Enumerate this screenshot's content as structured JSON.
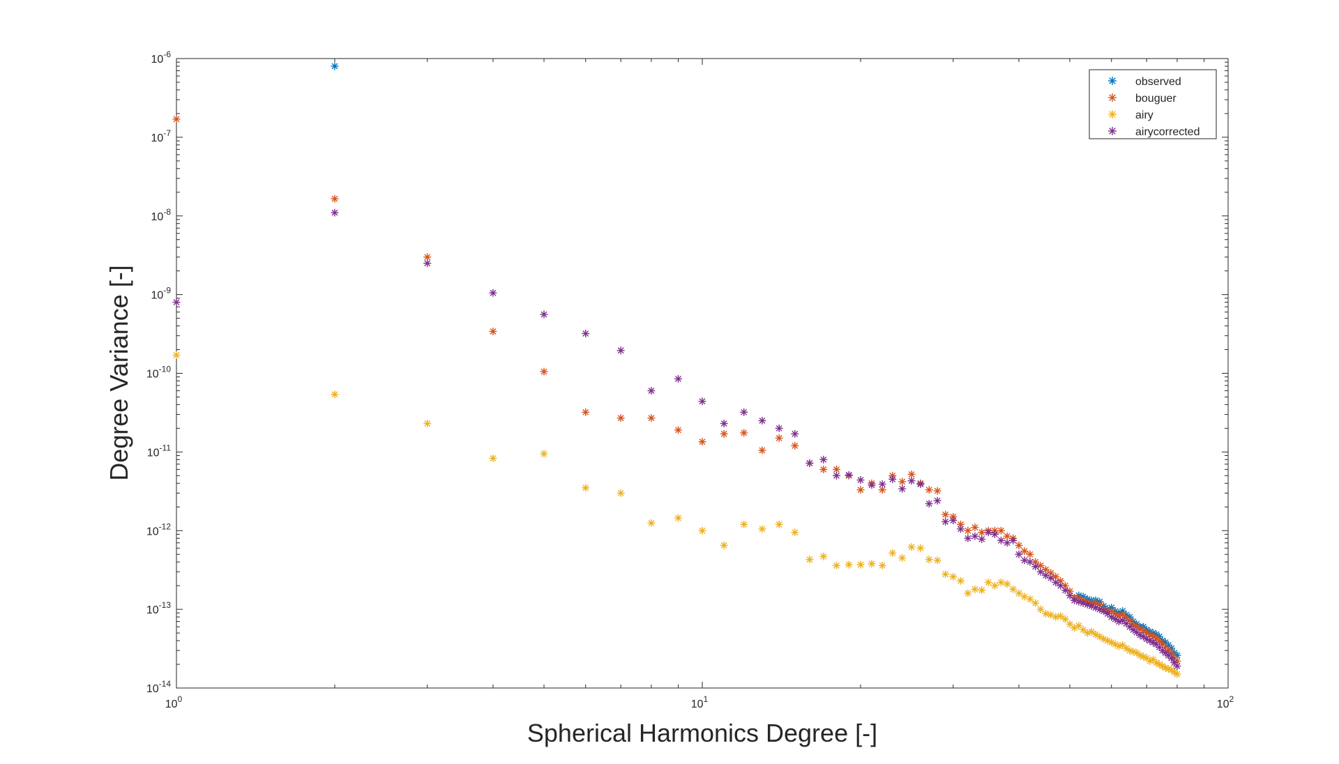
{
  "chart_data": {
    "type": "scatter",
    "title": "",
    "xlabel": "Spherical Harmonics Degree [-]",
    "ylabel": "Degree Variance [-]",
    "xscale": "log",
    "yscale": "log",
    "xlim": [
      1,
      100
    ],
    "ylim": [
      1e-14,
      1e-06
    ],
    "grid": false,
    "legend": "top-right",
    "x_ticks": [
      {
        "value": 1,
        "base": "10",
        "exp": "0"
      },
      {
        "value": 10,
        "base": "10",
        "exp": "1"
      },
      {
        "value": 100,
        "base": "10",
        "exp": "2"
      }
    ],
    "y_ticks": [
      {
        "value": 1e-14,
        "base": "10",
        "exp": "-14"
      },
      {
        "value": 1e-13,
        "base": "10",
        "exp": "-13"
      },
      {
        "value": 1e-12,
        "base": "10",
        "exp": "-12"
      },
      {
        "value": 1e-11,
        "base": "10",
        "exp": "-11"
      },
      {
        "value": 1e-10,
        "base": "10",
        "exp": "-10"
      },
      {
        "value": 1e-09,
        "base": "10",
        "exp": "-9"
      },
      {
        "value": 1e-08,
        "base": "10",
        "exp": "-8"
      },
      {
        "value": 1e-07,
        "base": "10",
        "exp": "-7"
      },
      {
        "value": 1e-06,
        "base": "10",
        "exp": "-6"
      }
    ],
    "series": [
      {
        "name": "observed",
        "color": "#0072BD",
        "points": [
          [
            2,
            8e-07
          ],
          [
            51,
            1.4e-13
          ],
          [
            52,
            1.5e-13
          ],
          [
            53,
            1.45e-13
          ],
          [
            54,
            1.35e-13
          ],
          [
            55,
            1.3e-13
          ],
          [
            56,
            1.3e-13
          ],
          [
            57,
            1.25e-13
          ],
          [
            58,
            1.1e-13
          ],
          [
            59,
            1e-13
          ],
          [
            60,
            1.05e-13
          ],
          [
            61,
            9.5e-14
          ],
          [
            62,
            9e-14
          ],
          [
            63,
            9.5e-14
          ],
          [
            64,
            8.5e-14
          ],
          [
            65,
            8e-14
          ],
          [
            66,
            7e-14
          ],
          [
            67,
            6.5e-14
          ],
          [
            68,
            6e-14
          ],
          [
            69,
            6e-14
          ],
          [
            70,
            5.5e-14
          ],
          [
            71,
            5.2e-14
          ],
          [
            72,
            5e-14
          ],
          [
            73,
            4.8e-14
          ],
          [
            74,
            4.5e-14
          ],
          [
            75,
            4e-14
          ],
          [
            76,
            3.8e-14
          ],
          [
            77,
            3.5e-14
          ],
          [
            78,
            3.2e-14
          ],
          [
            79,
            2.8e-14
          ],
          [
            80,
            2.6e-14
          ]
        ]
      },
      {
        "name": "bouguer",
        "color": "#D95319",
        "points": [
          [
            1,
            1.7e-07
          ],
          [
            2,
            1.65e-08
          ],
          [
            3,
            3e-09
          ],
          [
            4,
            3.4e-10
          ],
          [
            5,
            1.05e-10
          ],
          [
            6,
            3.2e-11
          ],
          [
            7,
            2.7e-11
          ],
          [
            8,
            2.7e-11
          ],
          [
            9,
            1.9e-11
          ],
          [
            10,
            1.35e-11
          ],
          [
            11,
            1.7e-11
          ],
          [
            12,
            1.75e-11
          ],
          [
            13,
            1.05e-11
          ],
          [
            14,
            1.5e-11
          ],
          [
            15,
            1.2e-11
          ],
          [
            16,
            7.2e-12
          ],
          [
            17,
            6e-12
          ],
          [
            18,
            6e-12
          ],
          [
            19,
            5e-12
          ],
          [
            20,
            3.3e-12
          ],
          [
            21,
            4e-12
          ],
          [
            22,
            3.3e-12
          ],
          [
            23,
            5e-12
          ],
          [
            24,
            4.2e-12
          ],
          [
            25,
            5.2e-12
          ],
          [
            26,
            4e-12
          ],
          [
            27,
            3.3e-12
          ],
          [
            28,
            3.2e-12
          ],
          [
            29,
            1.6e-12
          ],
          [
            30,
            1.5e-12
          ],
          [
            31,
            1.2e-12
          ],
          [
            32,
            1e-12
          ],
          [
            33,
            1.1e-12
          ],
          [
            34,
            9.5e-13
          ],
          [
            35,
            1e-12
          ],
          [
            36,
            1e-12
          ],
          [
            37,
            1e-12
          ],
          [
            38,
            8.5e-13
          ],
          [
            39,
            8e-13
          ],
          [
            40,
            6.5e-13
          ],
          [
            41,
            5.5e-13
          ],
          [
            42,
            5e-13
          ],
          [
            43,
            4e-13
          ],
          [
            44,
            3.6e-13
          ],
          [
            45,
            3.2e-13
          ],
          [
            46,
            2.9e-13
          ],
          [
            47,
            2.6e-13
          ],
          [
            48,
            2.3e-13
          ],
          [
            49,
            2e-13
          ],
          [
            50,
            1.7e-13
          ],
          [
            51,
            1.4e-13
          ],
          [
            52,
            1.4e-13
          ],
          [
            53,
            1.3e-13
          ],
          [
            54,
            1.25e-13
          ],
          [
            55,
            1.2e-13
          ],
          [
            56,
            1.2e-13
          ],
          [
            57,
            1.15e-13
          ],
          [
            58,
            1e-13
          ],
          [
            59,
            9.5e-14
          ],
          [
            60,
            9.5e-14
          ],
          [
            61,
            8.8e-14
          ],
          [
            62,
            8.2e-14
          ],
          [
            63,
            8.5e-14
          ],
          [
            64,
            7.8e-14
          ],
          [
            65,
            7.2e-14
          ],
          [
            66,
            6.4e-14
          ],
          [
            67,
            6e-14
          ],
          [
            68,
            5.6e-14
          ],
          [
            69,
            5.4e-14
          ],
          [
            70,
            5e-14
          ],
          [
            71,
            4.8e-14
          ],
          [
            72,
            4.5e-14
          ],
          [
            73,
            4.3e-14
          ],
          [
            74,
            4e-14
          ],
          [
            75,
            3.6e-14
          ],
          [
            76,
            3.3e-14
          ],
          [
            77,
            3e-14
          ],
          [
            78,
            2.8e-14
          ],
          [
            79,
            2.4e-14
          ],
          [
            80,
            2.2e-14
          ]
        ]
      },
      {
        "name": "airy",
        "color": "#EDB120",
        "points": [
          [
            1,
            1.7e-10
          ],
          [
            2,
            5.4e-11
          ],
          [
            3,
            2.3e-11
          ],
          [
            4,
            8.3e-12
          ],
          [
            5,
            9.5e-12
          ],
          [
            6,
            3.5e-12
          ],
          [
            7,
            3e-12
          ],
          [
            8,
            1.25e-12
          ],
          [
            9,
            1.45e-12
          ],
          [
            10,
            1e-12
          ],
          [
            11,
            6.5e-13
          ],
          [
            12,
            1.2e-12
          ],
          [
            13,
            1.05e-12
          ],
          [
            14,
            1.2e-12
          ],
          [
            15,
            9.5e-13
          ],
          [
            16,
            4.3e-13
          ],
          [
            17,
            4.7e-13
          ],
          [
            18,
            3.6e-13
          ],
          [
            19,
            3.7e-13
          ],
          [
            20,
            3.7e-13
          ],
          [
            21,
            3.8e-13
          ],
          [
            22,
            3.6e-13
          ],
          [
            23,
            5.2e-13
          ],
          [
            24,
            4.5e-13
          ],
          [
            25,
            6.2e-13
          ],
          [
            26,
            6e-13
          ],
          [
            27,
            4.3e-13
          ],
          [
            28,
            4.2e-13
          ],
          [
            29,
            2.8e-13
          ],
          [
            30,
            2.6e-13
          ],
          [
            31,
            2.3e-13
          ],
          [
            32,
            1.6e-13
          ],
          [
            33,
            1.8e-13
          ],
          [
            34,
            1.75e-13
          ],
          [
            35,
            2.2e-13
          ],
          [
            36,
            2e-13
          ],
          [
            37,
            2.2e-13
          ],
          [
            38,
            2.1e-13
          ],
          [
            39,
            1.8e-13
          ],
          [
            40,
            1.6e-13
          ],
          [
            41,
            1.45e-13
          ],
          [
            42,
            1.35e-13
          ],
          [
            43,
            1.2e-13
          ],
          [
            44,
            1e-13
          ],
          [
            45,
            8.8e-14
          ],
          [
            46,
            8.5e-14
          ],
          [
            47,
            8e-14
          ],
          [
            48,
            8.2e-14
          ],
          [
            49,
            7.5e-14
          ],
          [
            50,
            6.5e-14
          ],
          [
            51,
            5.8e-14
          ],
          [
            52,
            6.2e-14
          ],
          [
            53,
            5.5e-14
          ],
          [
            54,
            5e-14
          ],
          [
            55,
            5.2e-14
          ],
          [
            56,
            4.8e-14
          ],
          [
            57,
            4.5e-14
          ],
          [
            58,
            4.2e-14
          ],
          [
            59,
            4e-14
          ],
          [
            60,
            3.8e-14
          ],
          [
            61,
            3.6e-14
          ],
          [
            62,
            3.4e-14
          ],
          [
            63,
            3.5e-14
          ],
          [
            64,
            3.2e-14
          ],
          [
            65,
            3e-14
          ],
          [
            66,
            2.9e-14
          ],
          [
            67,
            2.8e-14
          ],
          [
            68,
            2.6e-14
          ],
          [
            69,
            2.5e-14
          ],
          [
            70,
            2.4e-14
          ],
          [
            71,
            2.2e-14
          ],
          [
            72,
            2.3e-14
          ],
          [
            73,
            2.1e-14
          ],
          [
            74,
            2e-14
          ],
          [
            75,
            1.9e-14
          ],
          [
            76,
            1.8e-14
          ],
          [
            77,
            1.75e-14
          ],
          [
            78,
            1.7e-14
          ],
          [
            79,
            1.6e-14
          ],
          [
            80,
            1.5e-14
          ]
        ]
      },
      {
        "name": "airycorrected",
        "color": "#7E2F8E",
        "points": [
          [
            1,
            8e-10
          ],
          [
            2,
            1.1e-08
          ],
          [
            3,
            2.5e-09
          ],
          [
            4,
            1.05e-09
          ],
          [
            5,
            5.6e-10
          ],
          [
            6,
            3.2e-10
          ],
          [
            7,
            1.95e-10
          ],
          [
            8,
            6e-11
          ],
          [
            9,
            8.5e-11
          ],
          [
            10,
            4.4e-11
          ],
          [
            11,
            2.3e-11
          ],
          [
            12,
            3.2e-11
          ],
          [
            13,
            2.5e-11
          ],
          [
            14,
            2e-11
          ],
          [
            15,
            1.7e-11
          ],
          [
            16,
            7.2e-12
          ],
          [
            17,
            8e-12
          ],
          [
            18,
            5e-12
          ],
          [
            19,
            5.1e-12
          ],
          [
            20,
            4.4e-12
          ],
          [
            21,
            3.8e-12
          ],
          [
            22,
            3.9e-12
          ],
          [
            23,
            4.5e-12
          ],
          [
            24,
            3.4e-12
          ],
          [
            25,
            4.3e-12
          ],
          [
            26,
            3.9e-12
          ],
          [
            27,
            2.2e-12
          ],
          [
            28,
            2.4e-12
          ],
          [
            29,
            1.3e-12
          ],
          [
            30,
            1.35e-12
          ],
          [
            31,
            1.05e-12
          ],
          [
            32,
            8e-13
          ],
          [
            33,
            8.5e-13
          ],
          [
            34,
            7.8e-13
          ],
          [
            35,
            9.5e-13
          ],
          [
            36,
            9e-13
          ],
          [
            37,
            7.5e-13
          ],
          [
            38,
            7e-13
          ],
          [
            39,
            7.5e-13
          ],
          [
            40,
            5e-13
          ],
          [
            41,
            4.2e-13
          ],
          [
            42,
            4e-13
          ],
          [
            43,
            3.5e-13
          ],
          [
            44,
            3e-13
          ],
          [
            45,
            2.7e-13
          ],
          [
            46,
            2.5e-13
          ],
          [
            47,
            2.2e-13
          ],
          [
            48,
            2e-13
          ],
          [
            49,
            1.75e-13
          ],
          [
            50,
            1.5e-13
          ],
          [
            51,
            1.3e-13
          ],
          [
            52,
            1.25e-13
          ],
          [
            53,
            1.2e-13
          ],
          [
            54,
            1.15e-13
          ],
          [
            55,
            1.1e-13
          ],
          [
            56,
            1.05e-13
          ],
          [
            57,
            1e-13
          ],
          [
            58,
            9.5e-14
          ],
          [
            59,
            8.8e-14
          ],
          [
            60,
            8e-14
          ],
          [
            61,
            7.5e-14
          ],
          [
            62,
            7e-14
          ],
          [
            63,
            7.2e-14
          ],
          [
            64,
            6.6e-14
          ],
          [
            65,
            6e-14
          ],
          [
            66,
            5.5e-14
          ],
          [
            67,
            5.1e-14
          ],
          [
            68,
            4.7e-14
          ],
          [
            69,
            4.5e-14
          ],
          [
            70,
            4.2e-14
          ],
          [
            71,
            4e-14
          ],
          [
            72,
            3.8e-14
          ],
          [
            73,
            3.6e-14
          ],
          [
            74,
            3.3e-14
          ],
          [
            75,
            3e-14
          ],
          [
            76,
            2.8e-14
          ],
          [
            77,
            2.6e-14
          ],
          [
            78,
            2.4e-14
          ],
          [
            79,
            2.1e-14
          ],
          [
            80,
            1.9e-14
          ]
        ]
      }
    ]
  }
}
